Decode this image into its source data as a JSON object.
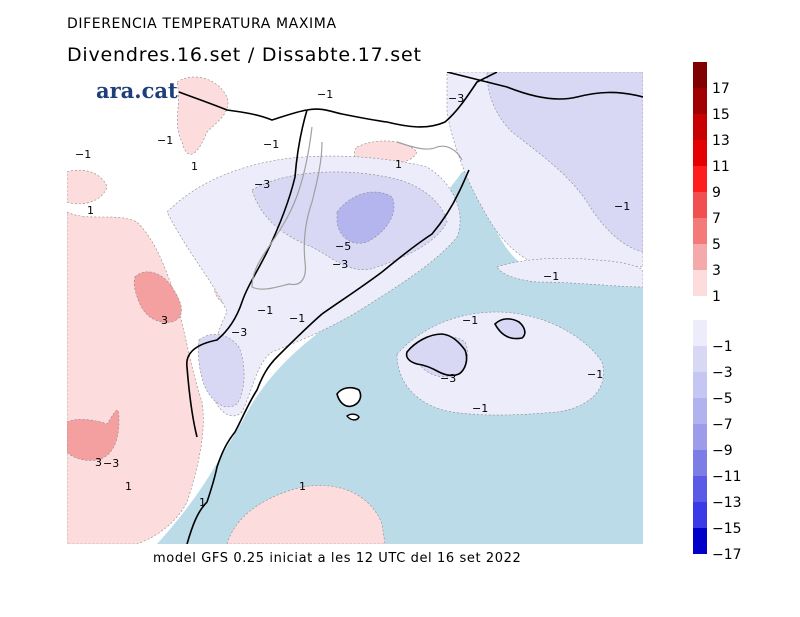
{
  "header": {
    "title": "DIFERENCIA TEMPERATURA MAXIMA",
    "subtitle": "Divendres.16.set / Dissabte.17.set",
    "footer": "model GFS 0.25 iniciat a les 12 UTC del 16 set 2022"
  },
  "logo": {
    "text": "ara.cat",
    "color": "#1f3f7a"
  },
  "colors": {
    "sea": "#bcdbe8",
    "land_neutral": "#ffffff",
    "warm_1": "#fcdcdc",
    "warm_3": "#f4a0a0",
    "cool_1": "#ececfa",
    "cool_3": "#d8d8f5",
    "cool_5": "#b4b4ee",
    "coast": "#000000",
    "border": "#a0a0a0"
  },
  "map_labels": [
    {
      "text": "−1"
    },
    {
      "text": "−1"
    },
    {
      "text": "−3"
    },
    {
      "text": "−1"
    },
    {
      "text": "1"
    },
    {
      "text": "−1"
    },
    {
      "text": "1"
    },
    {
      "text": "1"
    },
    {
      "text": "−3"
    },
    {
      "text": "−1"
    },
    {
      "text": "−5"
    },
    {
      "text": "−3"
    },
    {
      "text": "−3"
    },
    {
      "text": "−1"
    },
    {
      "text": "3"
    },
    {
      "text": "−1"
    },
    {
      "text": "−3"
    },
    {
      "text": "−1"
    },
    {
      "text": "−1"
    },
    {
      "text": "−3"
    },
    {
      "text": "−1"
    },
    {
      "text": "−1"
    },
    {
      "text": "3"
    },
    {
      "text": "1"
    },
    {
      "text": "1"
    },
    {
      "text": "1"
    }
  ],
  "legend": {
    "warm": [
      {
        "label": "17",
        "color": "#800000"
      },
      {
        "label": "15",
        "color": "#a00000"
      },
      {
        "label": "13",
        "color": "#c80000"
      },
      {
        "label": "11",
        "color": "#e40000"
      },
      {
        "label": "9",
        "color": "#ff1e1e"
      },
      {
        "label": "7",
        "color": "#f05050"
      },
      {
        "label": "5",
        "color": "#f47a7a"
      },
      {
        "label": "3",
        "color": "#f4aaaa"
      },
      {
        "label": "1",
        "color": "#fcdcdc"
      }
    ],
    "cool": [
      {
        "label": "−1",
        "color": "#ececfa"
      },
      {
        "label": "−3",
        "color": "#d8d8f5"
      },
      {
        "label": "−5",
        "color": "#c6c6f2"
      },
      {
        "label": "−7",
        "color": "#b2b2ee"
      },
      {
        "label": "−9",
        "color": "#9c9cea"
      },
      {
        "label": "−11",
        "color": "#7d7de6"
      },
      {
        "label": "−13",
        "color": "#5a5ae6"
      },
      {
        "label": "−15",
        "color": "#3a3ae6"
      },
      {
        "label": "−17",
        "color": "#0000c8"
      }
    ]
  }
}
